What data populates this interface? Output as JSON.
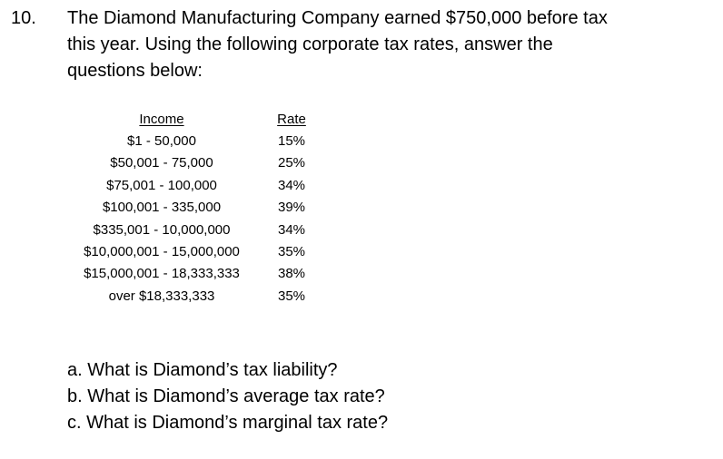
{
  "question": {
    "number": "10.",
    "lines": [
      "The Diamond Manufacturing Company earned $750,000 before tax",
      "this year.  Using the following corporate tax rates, answer the",
      "questions below:"
    ]
  },
  "tax_table": {
    "headers": {
      "income": "Income",
      "rate": "Rate"
    },
    "rows": [
      {
        "income": "$1 - 50,000",
        "rate": "15%"
      },
      {
        "income": "$50,001 - 75,000",
        "rate": "25%"
      },
      {
        "income": "$75,001 - 100,000",
        "rate": "34%"
      },
      {
        "income": "$100,001 - 335,000",
        "rate": "39%"
      },
      {
        "income": "$335,001 - 10,000,000",
        "rate": "34%"
      },
      {
        "income": "$10,000,001 - 15,000,000",
        "rate": "35%"
      },
      {
        "income": "$15,000,001 - 18,333,333",
        "rate": "38%"
      },
      {
        "income": "over $18,333,333",
        "rate": "35%"
      }
    ]
  },
  "subquestions": [
    "a. What is Diamond’s tax liability?",
    "b. What is Diamond’s average tax rate?",
    "c. What is Diamond’s marginal tax rate?"
  ]
}
